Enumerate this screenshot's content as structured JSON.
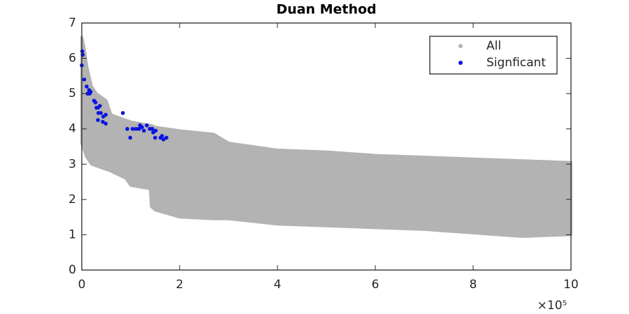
{
  "chart_data": {
    "type": "scatter",
    "title": "Duan Method",
    "x_multiplier_label": "×10⁵",
    "xlim": [
      0,
      10
    ],
    "xticks": [
      0,
      2,
      4,
      6,
      8,
      10
    ],
    "ylim": [
      0,
      7
    ],
    "yticks": [
      0,
      1,
      2,
      3,
      4,
      5,
      6,
      7
    ],
    "legend": "top-right",
    "series": [
      {
        "name": "All",
        "color": "#b3b3b3",
        "x": [
          0,
          0.05,
          0.1,
          0.2,
          0.3,
          0.5,
          0.6,
          0.9,
          1.0,
          1.4,
          1.42,
          1.5,
          2.0,
          2.7,
          3.0,
          4.0,
          5.0,
          6.0,
          7.0,
          8.0,
          9.0,
          10
        ],
        "upper": [
          6.6,
          6.3,
          5.8,
          5.2,
          5.0,
          4.8,
          4.4,
          4.25,
          4.2,
          4.1,
          4.1,
          4.05,
          3.95,
          3.85,
          3.6,
          3.4,
          3.35,
          3.25,
          3.2,
          3.15,
          3.1,
          3.05
        ],
        "lower": [
          3.6,
          3.4,
          3.2,
          3.0,
          2.95,
          2.85,
          2.8,
          2.6,
          2.4,
          2.3,
          1.8,
          1.7,
          1.5,
          1.45,
          1.45,
          1.3,
          1.25,
          1.2,
          1.15,
          1.05,
          0.95,
          1.0
        ]
      },
      {
        "name": "Signficant",
        "color": "#0a14e0",
        "x": [
          0.01,
          0.02,
          0.0,
          0.05,
          0.1,
          0.15,
          0.16,
          0.18,
          0.12,
          0.25,
          0.28,
          0.3,
          0.33,
          0.37,
          0.34,
          0.39,
          0.44,
          0.49,
          0.33,
          0.43,
          0.49,
          0.84,
          0.93,
          0.99,
          1.04,
          1.11,
          1.17,
          1.23,
          1.19,
          1.27,
          1.33,
          1.39,
          1.46,
          1.44,
          1.51,
          1.5,
          1.61,
          1.67,
          1.73,
          1.64
        ],
        "values": [
          6.2,
          6.1,
          5.8,
          5.4,
          5.2,
          5.1,
          5.0,
          5.05,
          5.0,
          4.8,
          4.75,
          4.6,
          4.6,
          4.65,
          4.45,
          4.45,
          4.35,
          4.4,
          4.25,
          4.2,
          4.15,
          4.45,
          4.0,
          3.75,
          4.0,
          4.0,
          4.0,
          4.05,
          4.1,
          3.95,
          4.1,
          4.0,
          3.9,
          4.0,
          3.95,
          3.75,
          3.75,
          3.7,
          3.75,
          3.8
        ]
      }
    ]
  }
}
